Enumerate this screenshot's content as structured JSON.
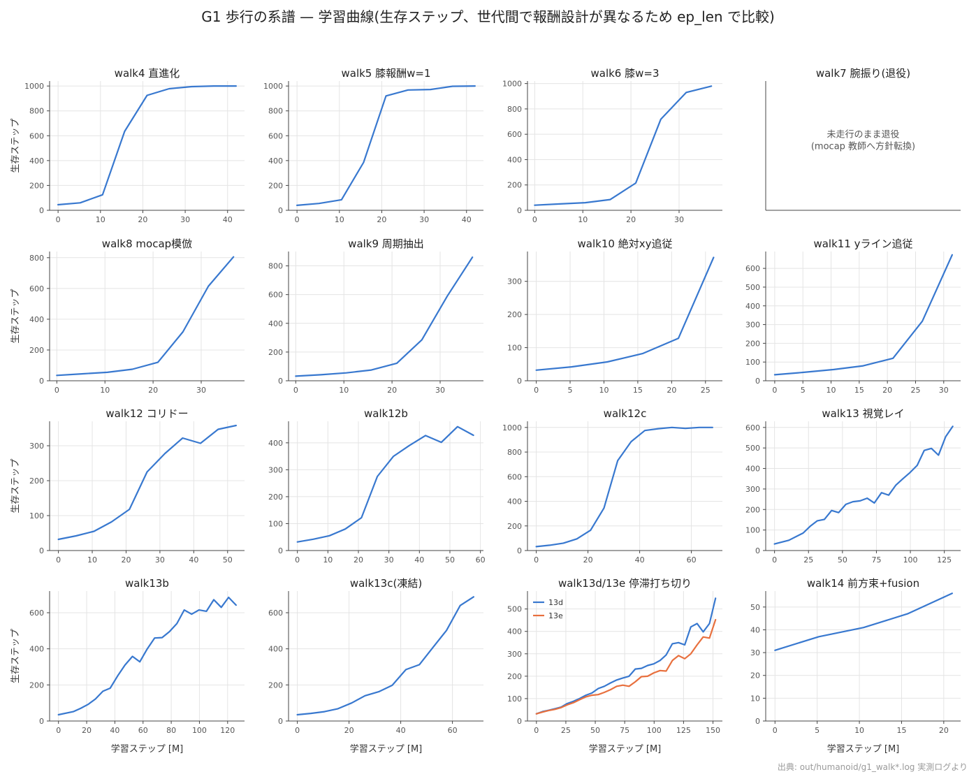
{
  "suptitle": "G1 歩行の系譜 — 学習曲線(生存ステップ、世代間で報酬設計が異なるため ep_len で比較)",
  "source": "出典: out/humanoid/g1_walk*.log 実測ログより",
  "colors": {
    "blue": "#3878cf",
    "orange": "#e8703e",
    "grid": "#e4e4e4",
    "axis": "#444444"
  },
  "chart_data": [
    {
      "type": "line",
      "title": "walk4 直進化",
      "xlabel": "",
      "ylabel": "生存ステップ",
      "xlim": [
        -2,
        44
      ],
      "ylim": [
        0,
        1040
      ],
      "xticks": [
        0,
        10,
        20,
        30,
        40
      ],
      "yticks": [
        0,
        200,
        400,
        600,
        800,
        1000
      ],
      "grid": true,
      "series": [
        {
          "name": "",
          "color": "#3878cf",
          "x": [
            0,
            5.2,
            10.5,
            15.7,
            21,
            26.2,
            31.5,
            36.7,
            42
          ],
          "y": [
            45,
            60,
            125,
            635,
            925,
            978,
            995,
            1000,
            1000
          ]
        }
      ]
    },
    {
      "type": "line",
      "title": "walk5 膝報酬w=1",
      "xlabel": "",
      "ylabel": "",
      "xlim": [
        -2,
        44
      ],
      "ylim": [
        0,
        1040
      ],
      "xticks": [
        0,
        10,
        20,
        30,
        40
      ],
      "yticks": [
        0,
        200,
        400,
        600,
        800,
        1000
      ],
      "grid": true,
      "series": [
        {
          "name": "",
          "color": "#3878cf",
          "x": [
            0,
            5.2,
            10.5,
            15.7,
            21,
            26.2,
            31.5,
            36.7,
            42
          ],
          "y": [
            40,
            55,
            85,
            385,
            920,
            968,
            972,
            998,
            1000
          ]
        }
      ]
    },
    {
      "type": "line",
      "title": "walk6 膝w=3",
      "xlabel": "",
      "ylabel": "",
      "xlim": [
        -1.5,
        39
      ],
      "ylim": [
        0,
        1020
      ],
      "xticks": [
        0,
        10,
        20,
        30
      ],
      "yticks": [
        0,
        200,
        400,
        600,
        800,
        1000
      ],
      "grid": true,
      "series": [
        {
          "name": "",
          "color": "#3878cf",
          "x": [
            0,
            5.2,
            10.5,
            15.7,
            21,
            26.2,
            31.5,
            36.7
          ],
          "y": [
            40,
            50,
            60,
            85,
            215,
            718,
            930,
            980
          ]
        }
      ]
    },
    {
      "type": "empty",
      "title": "walk7 腕振り(退役)",
      "xlabel": "",
      "ylabel": "",
      "note": [
        "未走行のまま退役",
        "(mocap 教師へ方針転換)"
      ]
    },
    {
      "type": "line",
      "title": "walk8 mocap模倣",
      "xlabel": "",
      "ylabel": "生存ステップ",
      "xlim": [
        -1.5,
        39
      ],
      "ylim": [
        0,
        840
      ],
      "xticks": [
        0,
        10,
        20,
        30
      ],
      "yticks": [
        0,
        200,
        400,
        600,
        800
      ],
      "grid": true,
      "series": [
        {
          "name": "",
          "color": "#3878cf",
          "x": [
            0,
            5.2,
            10.5,
            15.7,
            21,
            26.2,
            31.5,
            36.7
          ],
          "y": [
            35,
            45,
            55,
            75,
            120,
            318,
            615,
            805
          ]
        }
      ]
    },
    {
      "type": "line",
      "title": "walk9 周期抽出",
      "xlabel": "",
      "ylabel": "",
      "xlim": [
        -1.5,
        39
      ],
      "ylim": [
        0,
        900
      ],
      "xticks": [
        0,
        10,
        20,
        30
      ],
      "yticks": [
        0,
        200,
        400,
        600,
        800
      ],
      "grid": true,
      "series": [
        {
          "name": "",
          "color": "#3878cf",
          "x": [
            0,
            5.2,
            10.5,
            15.7,
            21,
            26.2,
            31.5,
            36.7
          ],
          "y": [
            32,
            42,
            55,
            75,
            122,
            285,
            590,
            860
          ]
        }
      ]
    },
    {
      "type": "line",
      "title": "walk10 絶対xy追従",
      "xlabel": "",
      "ylabel": "",
      "xlim": [
        -1.3,
        27.5
      ],
      "ylim": [
        0,
        390
      ],
      "xticks": [
        0,
        5,
        10,
        15,
        20,
        25
      ],
      "yticks": [
        0,
        100,
        200,
        300
      ],
      "grid": true,
      "series": [
        {
          "name": "",
          "color": "#3878cf",
          "x": [
            0,
            5.2,
            10.5,
            15.7,
            21,
            26.2
          ],
          "y": [
            32,
            42,
            57,
            82,
            128,
            372
          ]
        }
      ]
    },
    {
      "type": "line",
      "title": "walk11 yライン追従",
      "xlabel": "",
      "ylabel": "",
      "xlim": [
        -1.6,
        33
      ],
      "ylim": [
        0,
        690
      ],
      "xticks": [
        0,
        5,
        10,
        15,
        20,
        25,
        30
      ],
      "yticks": [
        0,
        100,
        200,
        300,
        400,
        500,
        600
      ],
      "grid": true,
      "series": [
        {
          "name": "",
          "color": "#3878cf",
          "x": [
            0,
            5.2,
            10.5,
            15.7,
            21,
            26.2,
            31.5
          ],
          "y": [
            32,
            45,
            60,
            80,
            120,
            318,
            672
          ]
        }
      ]
    },
    {
      "type": "line",
      "title": "walk12 コリドー",
      "xlabel": "",
      "ylabel": "生存ステップ",
      "xlim": [
        -2.6,
        55
      ],
      "ylim": [
        0,
        370
      ],
      "xticks": [
        0,
        10,
        20,
        30,
        40,
        50
      ],
      "yticks": [
        0,
        100,
        200,
        300
      ],
      "grid": true,
      "series": [
        {
          "name": "",
          "color": "#3878cf",
          "x": [
            0,
            5.2,
            10.5,
            15.7,
            21,
            26.2,
            31.5,
            36.7,
            42,
            47.2,
            52.5
          ],
          "y": [
            32,
            42,
            55,
            82,
            118,
            225,
            278,
            322,
            307,
            347,
            358
          ]
        }
      ]
    },
    {
      "type": "line",
      "title": "walk12b",
      "xlabel": "",
      "ylabel": "",
      "xlim": [
        -2.9,
        61
      ],
      "ylim": [
        0,
        480
      ],
      "xticks": [
        0,
        10,
        20,
        30,
        40,
        50,
        60
      ],
      "yticks": [
        0,
        100,
        200,
        300,
        400
      ],
      "grid": true,
      "series": [
        {
          "name": "",
          "color": "#3878cf",
          "x": [
            0,
            5.2,
            10.5,
            15.7,
            21,
            26.2,
            31.5,
            36.7,
            42,
            47.2,
            52.5,
            57.7
          ],
          "y": [
            32,
            42,
            55,
            80,
            122,
            275,
            350,
            390,
            427,
            402,
            460,
            428
          ]
        }
      ]
    },
    {
      "type": "line",
      "title": "walk12c",
      "xlabel": "",
      "ylabel": "",
      "xlim": [
        -3.4,
        72
      ],
      "ylim": [
        0,
        1050
      ],
      "xticks": [
        0,
        20,
        40,
        60
      ],
      "yticks": [
        0,
        200,
        400,
        600,
        800,
        1000
      ],
      "grid": true,
      "series": [
        {
          "name": "",
          "color": "#3878cf",
          "x": [
            0,
            5.2,
            10.5,
            15.7,
            21,
            26.2,
            31.5,
            36.7,
            42,
            47.2,
            52.5,
            57.7,
            63,
            68.2
          ],
          "y": [
            32,
            43,
            60,
            95,
            165,
            345,
            730,
            885,
            975,
            990,
            1000,
            992,
            1000,
            1000
          ]
        }
      ]
    },
    {
      "type": "line",
      "title": "walk13 視覚レイ",
      "xlabel": "",
      "ylabel": "",
      "xlim": [
        -6.5,
        137
      ],
      "ylim": [
        0,
        630
      ],
      "xticks": [
        0,
        25,
        50,
        75,
        100,
        125
      ],
      "yticks": [
        0,
        100,
        200,
        300,
        400,
        500,
        600
      ],
      "grid": true,
      "series": [
        {
          "name": "",
          "color": "#3878cf",
          "x": [
            0,
            10.5,
            21,
            26.2,
            31.5,
            36.7,
            42,
            47.2,
            52.5,
            57.7,
            63,
            68.2,
            73.5,
            78.7,
            84,
            89.2,
            94.5,
            99.7,
            105,
            110.2,
            115.5,
            120.7,
            126,
            131.2
          ],
          "y": [
            32,
            50,
            85,
            118,
            145,
            152,
            195,
            185,
            225,
            238,
            242,
            255,
            232,
            282,
            270,
            318,
            350,
            380,
            415,
            488,
            498,
            465,
            555,
            605
          ]
        }
      ]
    },
    {
      "type": "line",
      "title": "walk13b",
      "xlabel": "学習ステップ [M]",
      "ylabel": "生存ステップ",
      "xlim": [
        -6.3,
        132
      ],
      "ylim": [
        0,
        720
      ],
      "xticks": [
        0,
        20,
        40,
        60,
        80,
        100,
        120
      ],
      "yticks": [
        0,
        200,
        400,
        600
      ],
      "grid": true,
      "series": [
        {
          "name": "",
          "color": "#3878cf",
          "x": [
            0,
            10.5,
            15.7,
            21,
            26.2,
            31.5,
            36.7,
            42,
            47.2,
            52.5,
            57.7,
            63,
            68.2,
            73.5,
            78.7,
            84,
            89.2,
            94.5,
            99.7,
            105,
            110.2,
            115.5,
            120.7,
            126
          ],
          "y": [
            35,
            52,
            70,
            92,
            122,
            165,
            182,
            250,
            310,
            358,
            328,
            400,
            460,
            462,
            495,
            540,
            615,
            592,
            615,
            608,
            672,
            630,
            685,
            642
          ]
        }
      ]
    },
    {
      "type": "line",
      "title": "walk13c(凍結)",
      "xlabel": "学習ステップ [M]",
      "ylabel": "",
      "xlim": [
        -3.4,
        72
      ],
      "ylim": [
        0,
        720
      ],
      "xticks": [
        0,
        20,
        40,
        60
      ],
      "yticks": [
        0,
        200,
        400,
        600
      ],
      "grid": true,
      "series": [
        {
          "name": "",
          "color": "#3878cf",
          "x": [
            0,
            5.2,
            10.5,
            15.7,
            21,
            26.2,
            31.5,
            36.7,
            42,
            47.2,
            52.5,
            57.7,
            63,
            68.2
          ],
          "y": [
            35,
            42,
            52,
            68,
            100,
            140,
            162,
            198,
            285,
            312,
            408,
            502,
            640,
            688
          ]
        }
      ]
    },
    {
      "type": "line",
      "title": "walk13d/13e 停滞打ち切り",
      "xlabel": "学習ステップ [M]",
      "ylabel": "",
      "xlim": [
        -7.6,
        158
      ],
      "ylim": [
        0,
        580
      ],
      "xticks": [
        0,
        25,
        50,
        75,
        100,
        125,
        150
      ],
      "yticks": [
        0,
        100,
        200,
        300,
        400,
        500
      ],
      "grid": true,
      "legend": "top-left",
      "series": [
        {
          "name": "13d",
          "color": "#3878cf",
          "x": [
            0,
            5.2,
            10.5,
            15.7,
            21,
            26.2,
            31.5,
            36.7,
            42,
            47.2,
            52.5,
            57.7,
            63,
            68.2,
            73.5,
            78.7,
            84,
            89.2,
            94.5,
            99.7,
            105,
            110.2,
            115.5,
            120.7,
            126,
            131.2,
            136.5,
            141.7,
            147,
            152.2
          ],
          "y": [
            32,
            42,
            48,
            55,
            62,
            78,
            88,
            100,
            115,
            125,
            145,
            155,
            170,
            183,
            192,
            200,
            232,
            235,
            248,
            255,
            270,
            295,
            345,
            350,
            340,
            420,
            435,
            398,
            435,
            548
          ]
        },
        {
          "name": "13e",
          "color": "#e8703e",
          "x": [
            0,
            5.2,
            10.5,
            15.7,
            21,
            26.2,
            31.5,
            36.7,
            42,
            47.2,
            52.5,
            57.7,
            63,
            68.2,
            73.5,
            78.7,
            84,
            89.2,
            94.5,
            99.7,
            105,
            110.2,
            115.5,
            120.7,
            126,
            131.2,
            136.5,
            141.7,
            147,
            152.2
          ],
          "y": [
            32,
            40,
            47,
            52,
            60,
            72,
            82,
            95,
            108,
            115,
            118,
            128,
            140,
            155,
            160,
            155,
            175,
            198,
            200,
            215,
            225,
            223,
            270,
            292,
            278,
            300,
            340,
            375,
            370,
            452
          ]
        }
      ]
    },
    {
      "type": "line",
      "title": "walk14 前方束+fusion",
      "xlabel": "学習ステップ [M]",
      "ylabel": "",
      "xlim": [
        -1.1,
        22
      ],
      "ylim": [
        0,
        57
      ],
      "xticks": [
        0,
        5,
        10,
        15,
        20
      ],
      "yticks": [
        0,
        10,
        20,
        30,
        40,
        50
      ],
      "grid": true,
      "series": [
        {
          "name": "",
          "color": "#3878cf",
          "x": [
            0,
            5.2,
            10.5,
            15.7,
            21
          ],
          "y": [
            31,
            37,
            41,
            47,
            56
          ]
        }
      ]
    }
  ]
}
